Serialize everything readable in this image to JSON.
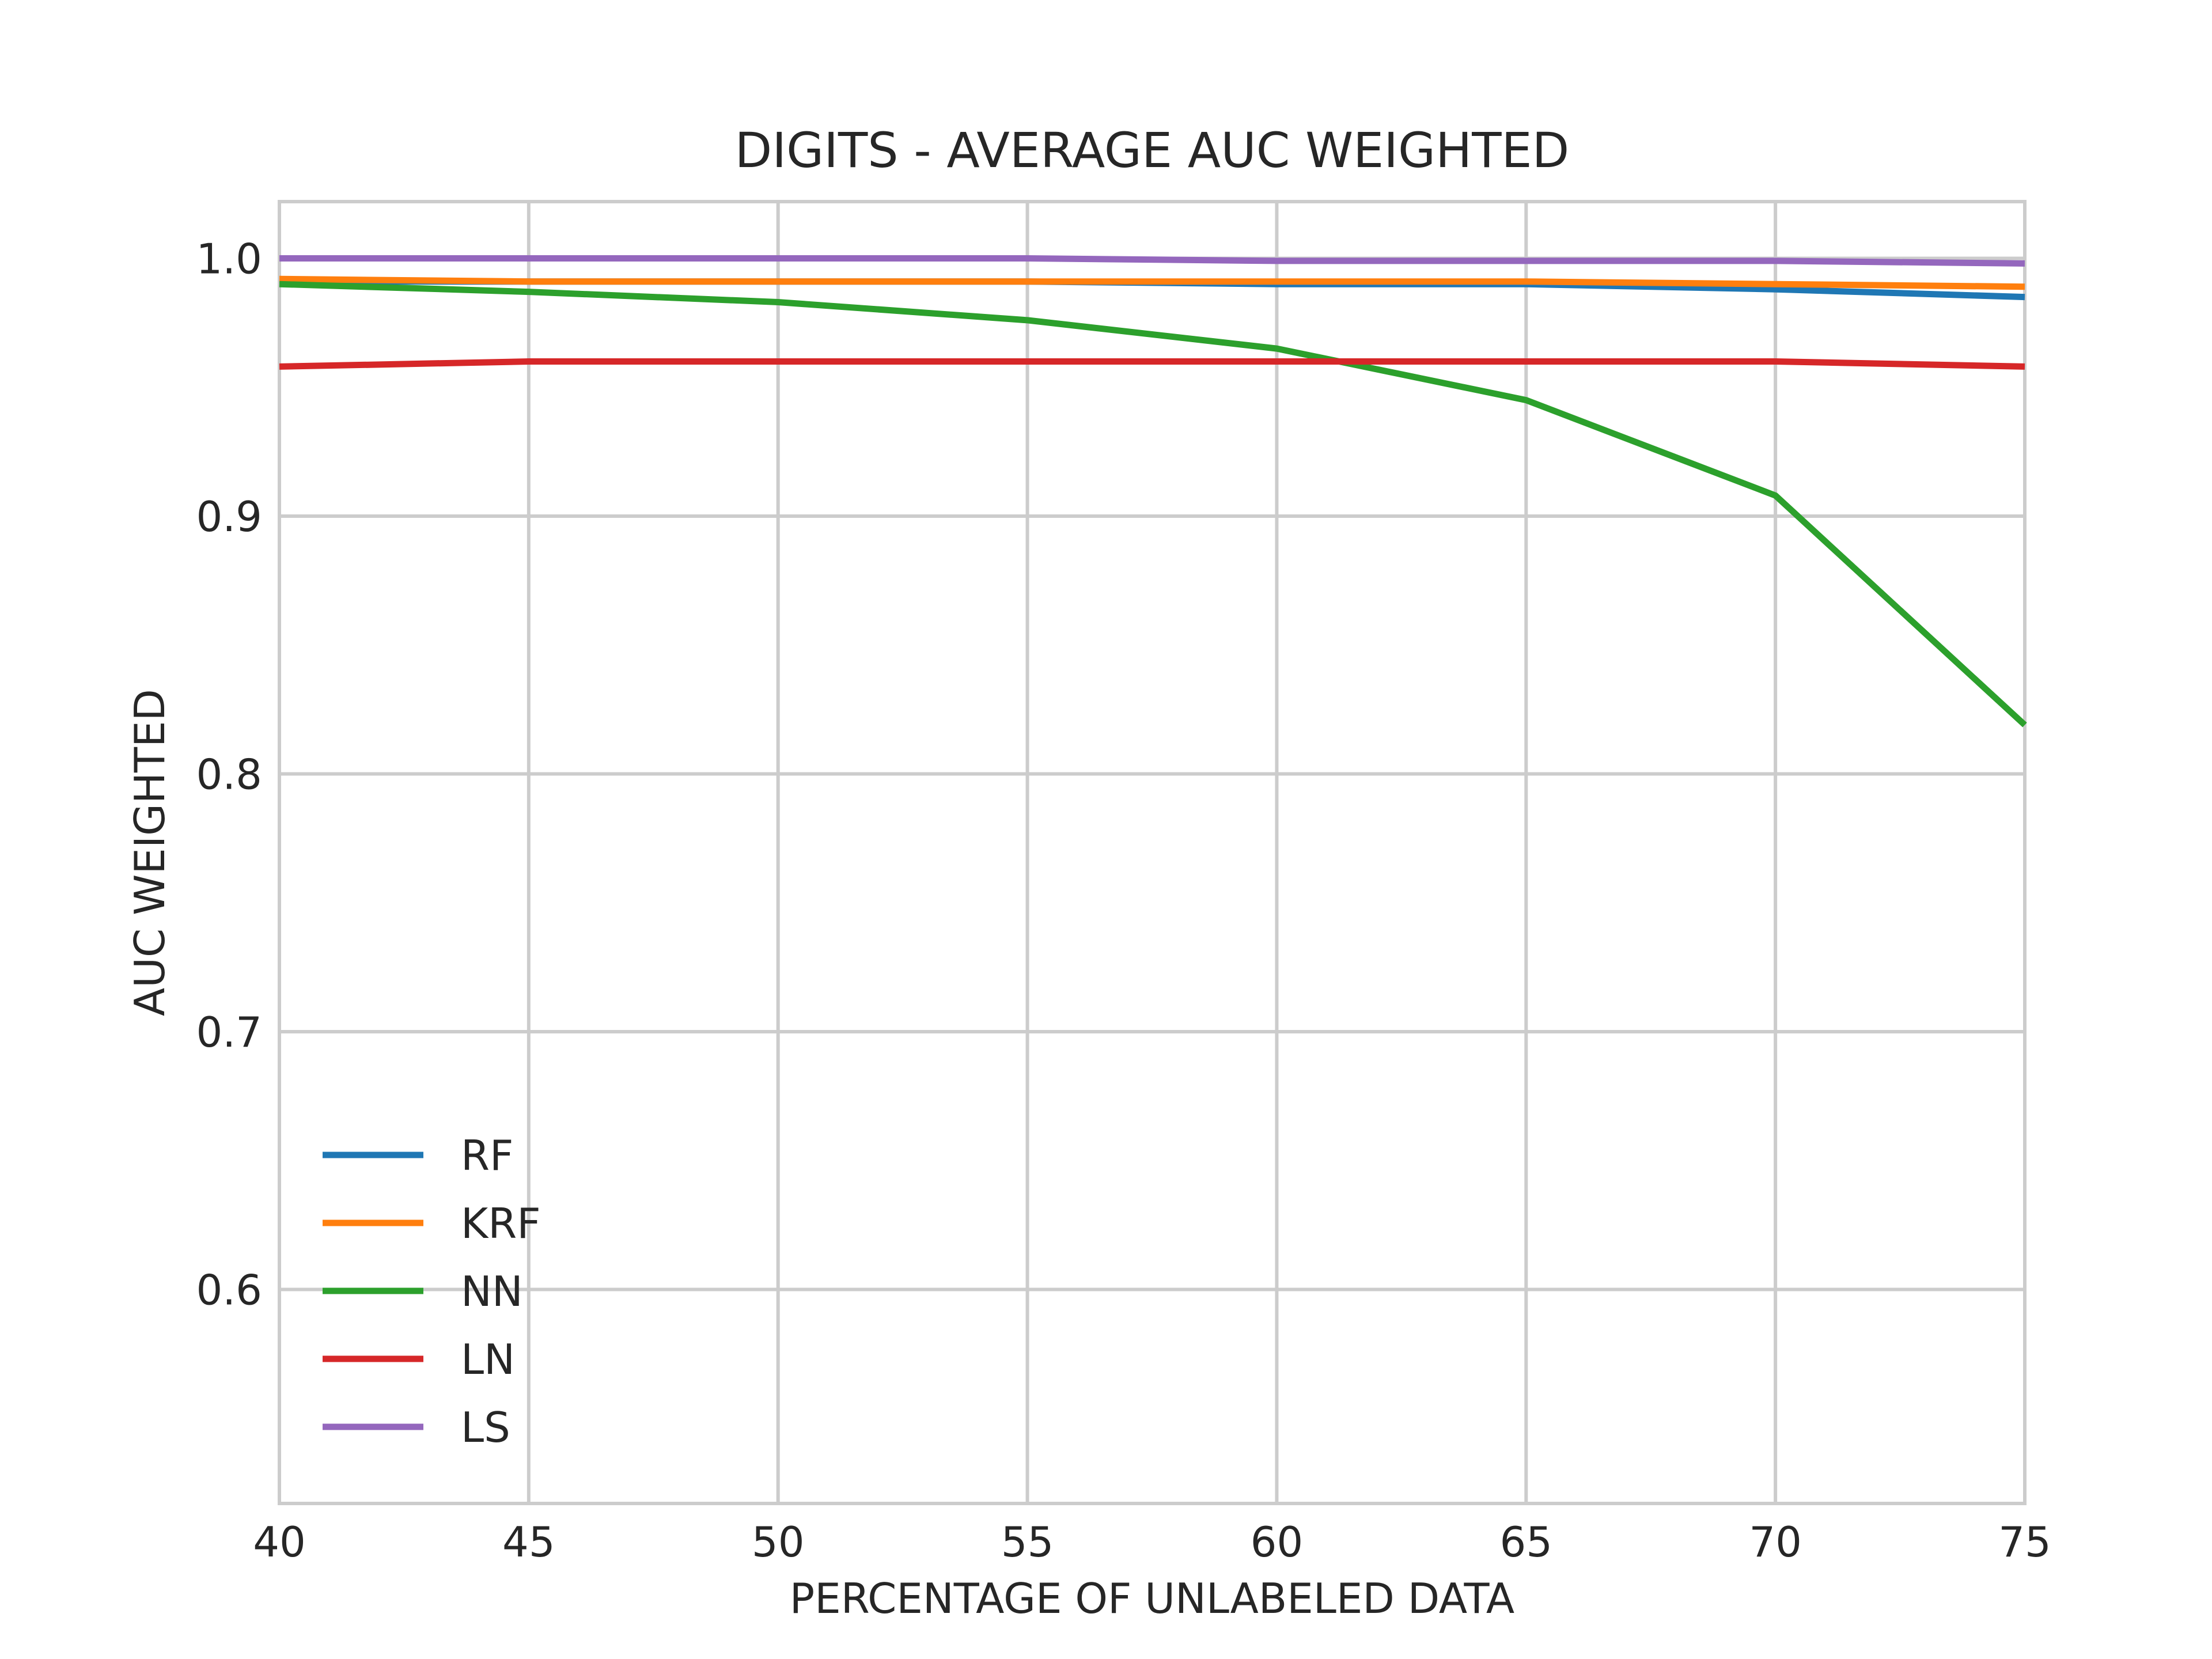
{
  "chart_data": {
    "type": "line",
    "title": "DIGITS - AVERAGE AUC WEIGHTED",
    "xlabel": "PERCENTAGE OF UNLABELED DATA",
    "ylabel": "AUC WEIGHTED",
    "x": [
      40,
      45,
      50,
      55,
      60,
      65,
      70,
      75
    ],
    "xlim": [
      40,
      75
    ],
    "ylim": [
      0.517,
      1.022
    ],
    "xticks": [
      "40",
      "45",
      "50",
      "55",
      "60",
      "65",
      "70",
      "75"
    ],
    "xtick_values": [
      40,
      45,
      50,
      55,
      60,
      65,
      70,
      75
    ],
    "yticks": [
      "0.6",
      "0.7",
      "0.8",
      "0.9",
      "1.0"
    ],
    "ytick_values": [
      0.6,
      0.7,
      0.8,
      0.9,
      1.0
    ],
    "grid": true,
    "legend_position": "lower-left",
    "series": [
      {
        "name": "RF",
        "color": "#1f77b4",
        "values": [
          0.991,
          0.991,
          0.991,
          0.991,
          0.99,
          0.99,
          0.988,
          0.985
        ]
      },
      {
        "name": "KRF",
        "color": "#ff7f0e",
        "values": [
          0.992,
          0.991,
          0.991,
          0.991,
          0.991,
          0.991,
          0.99,
          0.989
        ]
      },
      {
        "name": "NN",
        "color": "#2ca02c",
        "values": [
          0.99,
          0.987,
          0.983,
          0.976,
          0.965,
          0.945,
          0.908,
          0.819
        ]
      },
      {
        "name": "LN",
        "color": "#d62728",
        "values": [
          0.958,
          0.96,
          0.96,
          0.96,
          0.96,
          0.96,
          0.96,
          0.958
        ]
      },
      {
        "name": "LS",
        "color": "#9467bd",
        "values": [
          1.0,
          1.0,
          1.0,
          1.0,
          0.999,
          0.999,
          0.999,
          0.998
        ]
      }
    ]
  }
}
